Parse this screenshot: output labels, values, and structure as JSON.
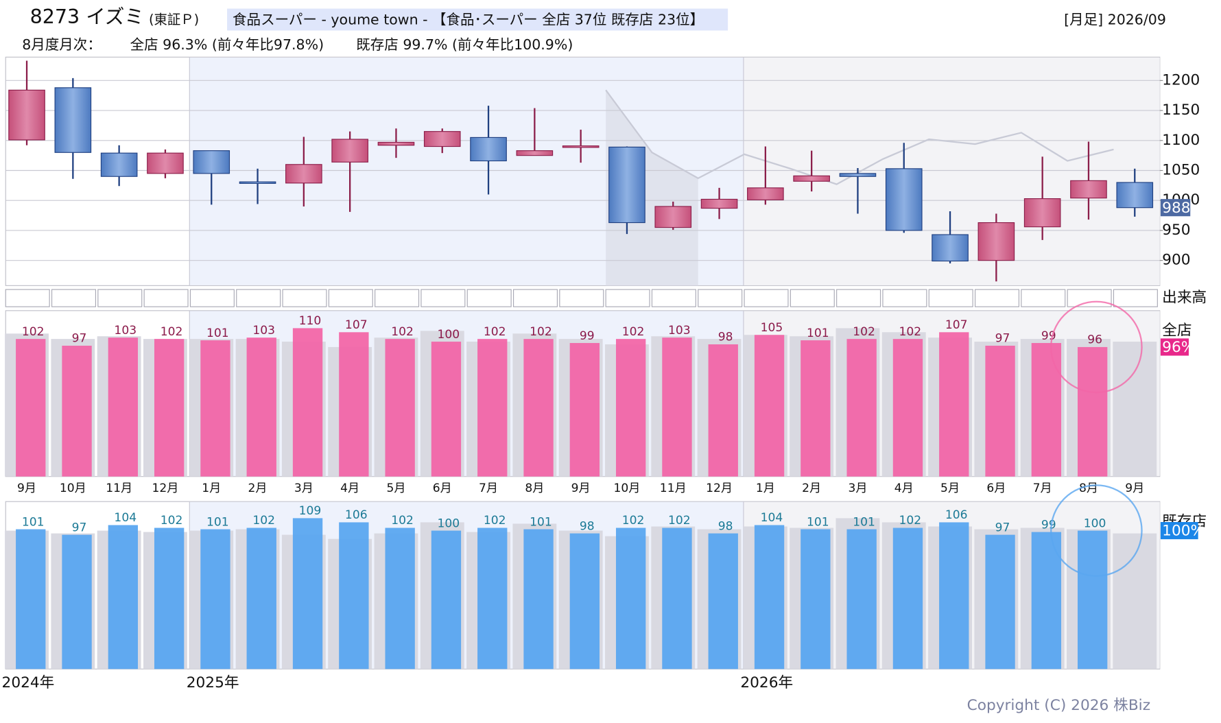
{
  "header": {
    "code_name": "8273 イズミ",
    "market": "(東証Ｐ)",
    "industry": "食品スーパー - youme town - 【食品･スーパー 全店 37位 既存店 23位】",
    "period": "[月足] 2026/09",
    "summary_label": "8月度月次：",
    "summary_all": "全店 96.3% (前々年比97.8%)",
    "summary_existing": "既存店 99.7% (前々年比100.9%)"
  },
  "chart_data": [
    {
      "type": "candlestick",
      "open": [
        1101,
        1188,
        1079,
        1045,
        1083,
        1031,
        1029,
        1064,
        1092,
        1090,
        1105,
        1075,
        1090,
        1089,
        955,
        987,
        1001,
        1032,
        1045,
        1053,
        943,
        900,
        956,
        1004,
        1030
      ],
      "high": [
        1233,
        1204,
        1092,
        1085,
        1083,
        1053,
        1106,
        1115,
        1120,
        1120,
        1158,
        1154,
        1118,
        1090,
        998,
        1021,
        1090,
        1083,
        1054,
        1096,
        982,
        978,
        1073,
        1098,
        1053
      ],
      "low": [
        1092,
        1036,
        1024,
        1037,
        993,
        994,
        990,
        981,
        1071,
        1079,
        1010,
        1075,
        1063,
        944,
        951,
        969,
        993,
        1015,
        978,
        946,
        895,
        865,
        934,
        968,
        973
      ],
      "close": [
        1184,
        1080,
        1040,
        1079,
        1045,
        1030,
        1060,
        1102,
        1097,
        1115,
        1066,
        1083,
        1091,
        963,
        990,
        1002,
        1021,
        1041,
        1040,
        950,
        899,
        963,
        1003,
        1033,
        988
      ],
      "line": [
        null,
        null,
        null,
        null,
        null,
        null,
        null,
        null,
        null,
        null,
        null,
        null,
        null,
        1184,
        1080,
        1037,
        1077,
        1053,
        1027,
        1069,
        1102,
        1094,
        1113,
        1066,
        1085
      ],
      "ylim": [
        858,
        1239
      ],
      "yticks": [
        900,
        950,
        1000,
        1050,
        1100,
        1150,
        1200
      ],
      "volume_title": "出来高",
      "grid": true
    },
    {
      "type": "bar",
      "title": "全店",
      "color": "#f266a8",
      "categories": [
        "9月",
        "10月",
        "11月",
        "12月",
        "1月",
        "2月",
        "3月",
        "4月",
        "5月",
        "6月",
        "7月",
        "8月",
        "9月",
        "10月",
        "11月",
        "12月",
        "1月",
        "2月",
        "3月",
        "4月",
        "5月",
        "6月",
        "7月",
        "8月",
        "9月"
      ],
      "values": [
        102,
        97,
        103,
        102,
        101,
        103,
        110,
        107,
        102,
        100,
        102,
        102,
        99,
        102,
        103,
        98,
        105,
        101,
        102,
        102,
        107,
        97,
        99,
        96,
        null
      ],
      "previous_values": [
        106,
        102,
        104,
        102,
        102,
        102,
        100,
        96,
        103,
        108,
        100,
        106,
        102,
        98,
        104,
        102,
        105,
        104,
        110,
        107,
        103,
        100,
        102,
        102,
        100
      ],
      "current_label": "96%",
      "ylim": [
        0,
        123
      ]
    },
    {
      "type": "bar",
      "title": "既存店",
      "color": "#5aa6f0",
      "values": [
        101,
        97,
        104,
        102,
        101,
        102,
        109,
        106,
        102,
        100,
        102,
        101,
        98,
        102,
        102,
        98,
        104,
        101,
        101,
        102,
        106,
        97,
        99,
        100,
        null
      ],
      "previous_values": [
        100,
        98,
        100,
        99,
        100,
        101,
        97,
        94,
        98,
        106,
        99,
        105,
        100,
        96,
        103,
        101,
        103,
        102,
        109,
        106,
        103,
        101,
        102,
        101,
        98
      ],
      "current_label": "100%",
      "years": [
        "2024年",
        null,
        null,
        null,
        "2025年",
        null,
        null,
        null,
        null,
        null,
        null,
        null,
        null,
        null,
        null,
        null,
        "2026年",
        null,
        null,
        null,
        null,
        null,
        null,
        null,
        null
      ],
      "ylim": [
        0,
        121
      ]
    }
  ],
  "copyright": "Copyright (C) 2026 株Biz"
}
